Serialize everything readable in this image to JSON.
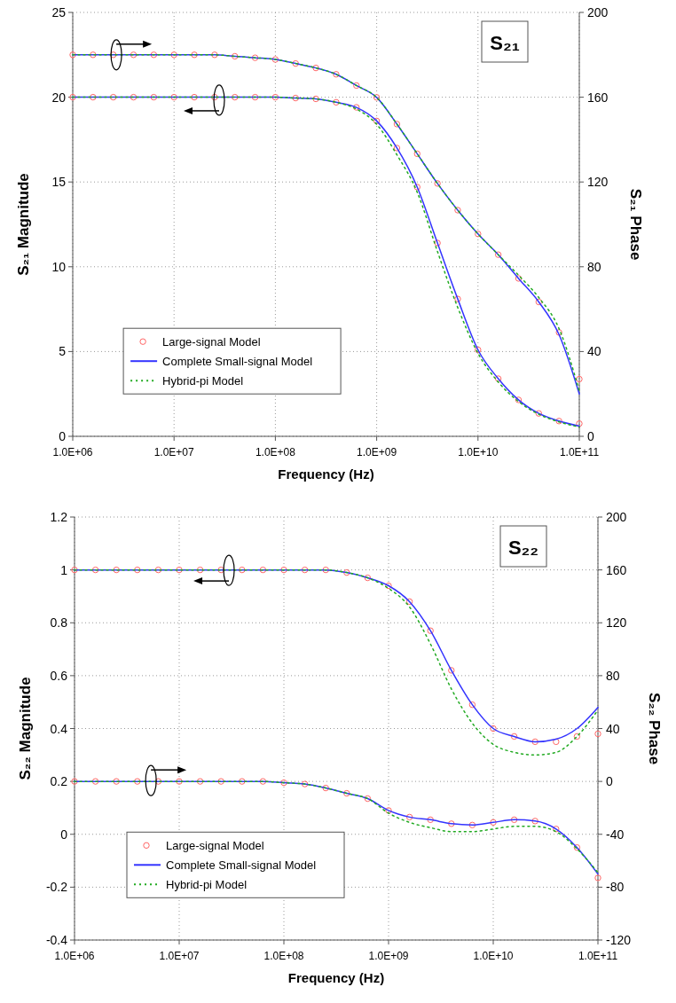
{
  "chart_data": [
    {
      "type": "line",
      "title": "S₂₁",
      "xlabel": "Frequency (Hz)",
      "ylabel": "S₂₁ Magnitude",
      "y2label": "S₂₁ Phase",
      "log": "x",
      "grid": true,
      "legend": "bottom left",
      "xlim": [
        1000000.0,
        100000000000.0
      ],
      "xticks": [
        {
          "value": 1000000.0,
          "label": "1.0E+06"
        },
        {
          "value": 10000000.0,
          "label": "1.0E+07"
        },
        {
          "value": 100000000.0,
          "label": "1.0E+08"
        },
        {
          "value": 1000000000.0,
          "label": "1.0E+09"
        },
        {
          "value": 10000000000.0,
          "label": "1.0E+10"
        },
        {
          "value": 100000000000.0,
          "label": "1.0E+11"
        }
      ],
      "ylim": [
        0,
        25
      ],
      "yticks": [
        0,
        5,
        10,
        15,
        20,
        25
      ],
      "y2lim": [
        0,
        200
      ],
      "y2ticks": [
        0,
        40,
        80,
        120,
        160,
        200
      ],
      "x": [
        1000000.0,
        1585000.0,
        2512000.0,
        3981000.0,
        6310000.0,
        10000000.0,
        15850000.0,
        25120000.0,
        39810000.0,
        63100000.0,
        100000000.0,
        158500000.0,
        251200000.0,
        398100000.0,
        631000000.0,
        1000000000.0,
        1585000000.0,
        2512000000.0,
        3981000000.0,
        6310000000.0,
        10000000000.0,
        15850000000.0,
        25120000000.0,
        39810000000.0,
        63100000000.0,
        100000000000.0
      ],
      "series": [
        {
          "name": "Large-signal Model",
          "type": "scatter",
          "marker": "circle",
          "color": "#ff6666",
          "values": [
            20,
            20,
            20,
            20,
            20,
            20,
            20,
            20,
            20,
            20,
            20,
            19.95,
            19.9,
            19.7,
            19.4,
            18.6,
            17,
            14.7,
            11.4,
            8.1,
            5.1,
            3.4,
            2.15,
            1.35,
            0.9,
            0.75
          ]
        },
        {
          "name": "Complete Small-signal Model",
          "type": "line",
          "line_style": "solid",
          "color": "#3333ff",
          "values": [
            20,
            20,
            20,
            20,
            20,
            20,
            20,
            20,
            20,
            20,
            20,
            19.95,
            19.9,
            19.7,
            19.4,
            18.6,
            17,
            14.7,
            11.4,
            8.1,
            5.1,
            3.4,
            2.15,
            1.35,
            0.9,
            0.6
          ]
        },
        {
          "name": "Hybrid-pi Model",
          "type": "line",
          "line_style": "dotted",
          "color": "#22aa22",
          "values": [
            20,
            20,
            20,
            20,
            20,
            20,
            20,
            20,
            20,
            20,
            20,
            19.95,
            19.9,
            19.7,
            19.3,
            18.4,
            16.6,
            14.4,
            10.9,
            7.6,
            4.9,
            3.2,
            2.05,
            1.3,
            0.85,
            0.55
          ]
        },
        {
          "type": "scatter",
          "marker": "circle",
          "axis": "y2",
          "color": "#ff6666",
          "values": [
            180,
            180,
            180,
            180,
            180,
            180,
            180,
            180,
            179.3,
            178.6,
            177.8,
            175.9,
            173.8,
            170.8,
            165.5,
            159.9,
            147.3,
            133.3,
            119.3,
            106.7,
            95.5,
            85.7,
            74.5,
            63.4,
            49,
            27
          ]
        },
        {
          "type": "line",
          "line_style": "solid",
          "axis": "y2",
          "color": "#3333ff",
          "values": [
            180,
            180,
            180,
            180,
            180,
            180,
            180,
            180,
            179.3,
            178.6,
            177.8,
            175.9,
            173.8,
            170.8,
            165.5,
            159.9,
            147.3,
            133.3,
            119.3,
            106.7,
            95.5,
            85.7,
            74.5,
            63.4,
            48,
            20
          ]
        },
        {
          "type": "line",
          "line_style": "dotted",
          "axis": "y2",
          "color": "#22aa22",
          "values": [
            180,
            180,
            180,
            180,
            180,
            180,
            180,
            180,
            179.3,
            178.6,
            177.8,
            175.9,
            173.8,
            170.8,
            165.5,
            159.9,
            147.3,
            133.3,
            119.3,
            106.7,
            95.5,
            85.7,
            76,
            65.5,
            50.8,
            21.4
          ]
        }
      ]
    },
    {
      "type": "line",
      "title": "S₂₂",
      "xlabel": "Frequency (Hz)",
      "ylabel": "S₂₂ Magnitude",
      "y2label": "S₂₂ Phase",
      "log": "x",
      "grid": true,
      "legend": "bottom left",
      "xlim": [
        1000000.0,
        100000000000.0
      ],
      "xticks": [
        {
          "value": 1000000.0,
          "label": "1.0E+06"
        },
        {
          "value": 10000000.0,
          "label": "1.0E+07"
        },
        {
          "value": 100000000.0,
          "label": "1.0E+08"
        },
        {
          "value": 1000000000.0,
          "label": "1.0E+09"
        },
        {
          "value": 10000000000.0,
          "label": "1.0E+10"
        },
        {
          "value": 100000000000.0,
          "label": "1.0E+11"
        }
      ],
      "ylim": [
        -0.4,
        1.2
      ],
      "yticks": [
        -0.4,
        -0.2,
        0,
        0.2,
        0.4,
        0.6,
        0.8,
        1,
        1.2
      ],
      "y2lim": [
        -120,
        200
      ],
      "y2ticks": [
        -120,
        -80,
        -40,
        0,
        40,
        80,
        120,
        160,
        200
      ],
      "x": [
        1000000.0,
        1585000.0,
        2512000.0,
        3981000.0,
        6310000.0,
        10000000.0,
        15850000.0,
        25120000.0,
        39810000.0,
        63100000.0,
        100000000.0,
        158500000.0,
        251200000.0,
        398100000.0,
        631000000.0,
        1000000000.0,
        1585000000.0,
        2512000000.0,
        3981000000.0,
        6310000000.0,
        10000000000.0,
        15850000000.0,
        25120000000.0,
        39810000000.0,
        63100000000.0,
        100000000000.0
      ],
      "series": [
        {
          "name": "Large-signal Model",
          "type": "scatter",
          "marker": "circle",
          "color": "#ff6666",
          "values": [
            1,
            1,
            1,
            1,
            1,
            1,
            1,
            1,
            1,
            1,
            1,
            1,
            1,
            0.99,
            0.97,
            0.94,
            0.88,
            0.77,
            0.62,
            0.49,
            0.4,
            0.37,
            0.35,
            0.35,
            0.37,
            0.38
          ]
        },
        {
          "name": "Complete Small-signal Model",
          "type": "line",
          "line_style": "solid",
          "color": "#3333ff",
          "values": [
            1,
            1,
            1,
            1,
            1,
            1,
            1,
            1,
            1,
            1,
            1,
            1,
            1,
            0.99,
            0.97,
            0.94,
            0.88,
            0.77,
            0.62,
            0.49,
            0.4,
            0.37,
            0.35,
            0.36,
            0.4,
            0.48
          ]
        },
        {
          "name": "Hybrid-pi Model",
          "type": "line",
          "line_style": "dotted",
          "color": "#22aa22",
          "values": [
            1,
            1,
            1,
            1,
            1,
            1,
            1,
            1,
            1,
            1,
            1,
            1,
            1,
            0.99,
            0.97,
            0.93,
            0.86,
            0.72,
            0.55,
            0.42,
            0.34,
            0.31,
            0.3,
            0.31,
            0.37,
            0.47
          ]
        },
        {
          "type": "scatter",
          "marker": "circle",
          "axis": "y2",
          "color": "#ff6666",
          "values": [
            0,
            0,
            0,
            0,
            0,
            0,
            0,
            0,
            0,
            0,
            -1,
            -2,
            -5,
            -9,
            -13,
            -22,
            -27,
            -29,
            -32,
            -33,
            -31,
            -29,
            -30,
            -36,
            -50,
            -73
          ]
        },
        {
          "type": "line",
          "line_style": "solid",
          "axis": "y2",
          "color": "#3333ff",
          "values": [
            0,
            0,
            0,
            0,
            0,
            0,
            0,
            0,
            0,
            0,
            -1,
            -2,
            -5,
            -9,
            -13,
            -22,
            -27,
            -29,
            -32,
            -33,
            -31,
            -29,
            -30,
            -36,
            -50,
            -70
          ]
        },
        {
          "type": "line",
          "line_style": "dotted",
          "axis": "y2",
          "color": "#22aa22",
          "values": [
            0,
            0,
            0,
            0,
            0,
            0,
            0,
            0,
            0,
            0,
            -1,
            -2,
            -5,
            -9,
            -13,
            -24,
            -31,
            -35,
            -38,
            -38,
            -36,
            -34,
            -34,
            -38,
            -51,
            -69
          ]
        }
      ]
    }
  ]
}
